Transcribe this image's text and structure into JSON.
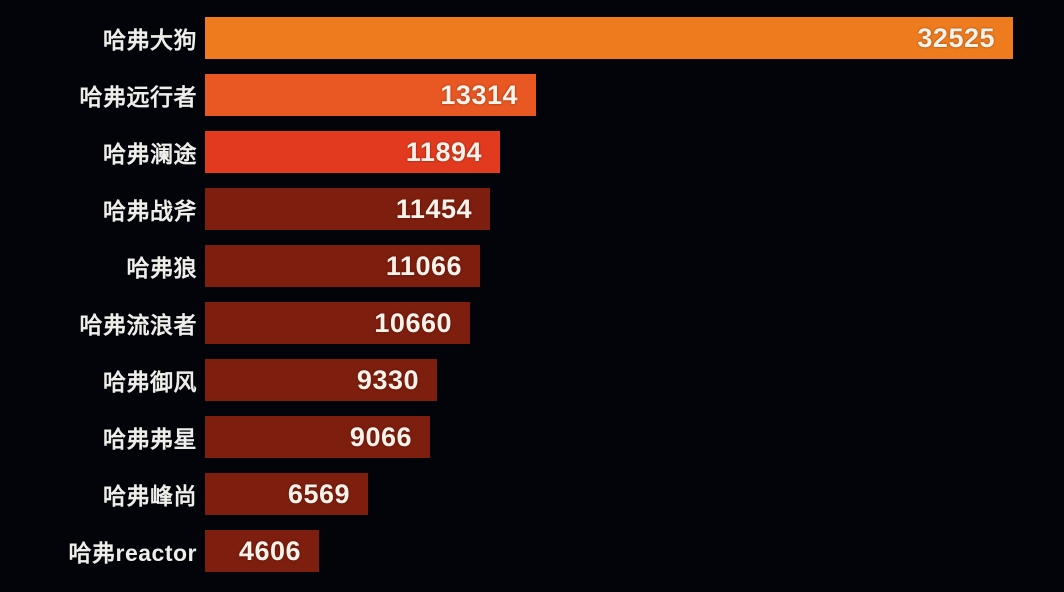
{
  "page": {
    "background_color": "#030409",
    "label_text_color": "#edeeea",
    "value_text_color": "#f8f3ea"
  },
  "chart_data": {
    "type": "bar",
    "orientation": "horizontal",
    "title": "",
    "xlabel": "",
    "ylabel": "",
    "xlim": [
      0,
      32525
    ],
    "grid": false,
    "legend": false,
    "value_labels_position": "inside-end",
    "categories": [
      "哈弗大狗",
      "哈弗远行者",
      "哈弗澜途",
      "哈弗战斧",
      "哈弗狼",
      "哈弗流浪者",
      "哈弗御风",
      "哈弗弗星",
      "哈弗峰尚",
      "哈弗reactor"
    ],
    "values": [
      32525,
      13314,
      11894,
      11454,
      11066,
      10660,
      9330,
      9066,
      6569,
      4606
    ],
    "bar_colors": [
      "#ee7c1e",
      "#e95722",
      "#e23a1f",
      "#7d1e0e",
      "#7d1e0e",
      "#7d1e0e",
      "#7d1e0e",
      "#7d1e0e",
      "#7d1e0e",
      "#7d1e0e"
    ]
  }
}
